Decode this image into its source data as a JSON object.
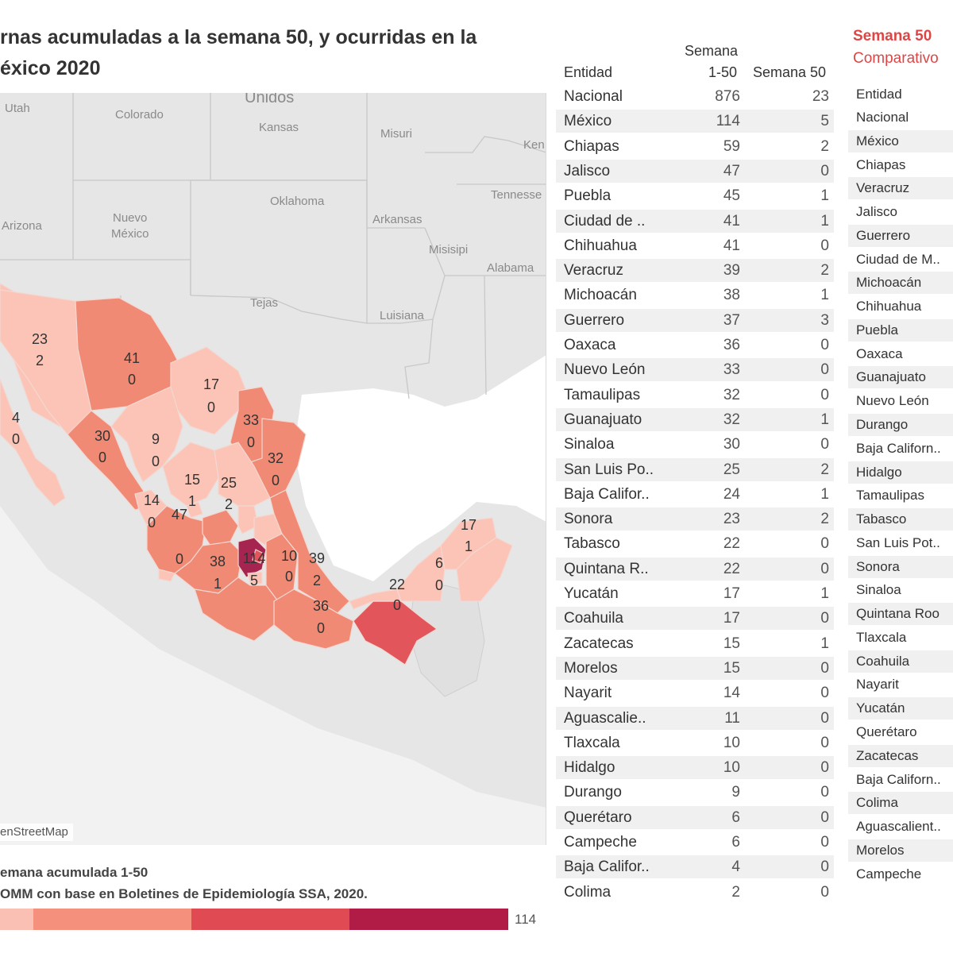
{
  "title": {
    "line1": "rnas acumuladas a la semana 50, y ocurridas en la",
    "line2": "éxico 2020"
  },
  "map": {
    "background_labels": [
      {
        "text": "Utah"
      },
      {
        "text": "Colorado"
      },
      {
        "text": "Unidos"
      },
      {
        "text": "Kansas"
      },
      {
        "text": "Misuri"
      },
      {
        "text": "Ken"
      },
      {
        "text": "Oklahoma"
      },
      {
        "text": "Tennesse"
      },
      {
        "text": "Arkansas"
      },
      {
        "text": "Arizona"
      },
      {
        "text": "Nuevo"
      },
      {
        "text": "México"
      },
      {
        "text": "Misisipi"
      },
      {
        "text": "Alabama"
      },
      {
        "text": "Tejas"
      },
      {
        "text": "Luisiana"
      }
    ],
    "credit": "enStreetMap",
    "state_values": [
      {
        "accumulated": "23",
        "week50": "2"
      },
      {
        "accumulated": "41",
        "week50": "0"
      },
      {
        "accumulated": "17",
        "week50": "0"
      },
      {
        "accumulated": "4",
        "week50": "0"
      },
      {
        "accumulated": "30",
        "week50": "0"
      },
      {
        "accumulated": "9",
        "week50": "0"
      },
      {
        "accumulated": "33",
        "week50": "0"
      },
      {
        "accumulated": "32",
        "week50": "0"
      },
      {
        "accumulated": "15",
        "week50": "1"
      },
      {
        "accumulated": "25",
        "week50": "2"
      },
      {
        "accumulated": "14",
        "week50": "0"
      },
      {
        "accumulated": "47",
        "week50": "0"
      },
      {
        "accumulated": "38",
        "week50": "1"
      },
      {
        "accumulated": "114",
        "week50": "5"
      },
      {
        "accumulated": "10",
        "week50": "0"
      },
      {
        "accumulated": "39",
        "week50": "2"
      },
      {
        "accumulated": "36",
        "week50": "0"
      },
      {
        "accumulated": "22",
        "week50": "0"
      },
      {
        "accumulated": "6",
        "week50": "0"
      },
      {
        "accumulated": "17",
        "week50": "1"
      }
    ]
  },
  "legend": {
    "line1": "emana acumulada 1-50",
    "line2": "OMM con base en Boletines de Epidemiología SSA, 2020.",
    "max_label": "114",
    "colors": [
      "#fbc0b4",
      "#f5907c",
      "#e04a52",
      "#b01c45"
    ]
  },
  "colors": {
    "accent": "#e04545",
    "scale": [
      "#fbc4b6",
      "#f6a08d",
      "#f08a74",
      "#e2555b",
      "#a52450"
    ],
    "land": "#e9e9e9",
    "water": "#ffffff"
  },
  "table1": {
    "header_entity": "Entidad",
    "header_acc_line1": "Semana",
    "header_acc_line2": "1-50",
    "header_w50": "Semana 50",
    "rows": [
      {
        "entity": "Nacional",
        "acc": "876",
        "w50": "23"
      },
      {
        "entity": "México",
        "acc": "114",
        "w50": "5"
      },
      {
        "entity": "Chiapas",
        "acc": "59",
        "w50": "2"
      },
      {
        "entity": "Jalisco",
        "acc": "47",
        "w50": "0"
      },
      {
        "entity": "Puebla",
        "acc": "45",
        "w50": "1"
      },
      {
        "entity": "Ciudad de ..",
        "acc": "41",
        "w50": "1"
      },
      {
        "entity": "Chihuahua",
        "acc": "41",
        "w50": "0"
      },
      {
        "entity": "Veracruz",
        "acc": "39",
        "w50": "2"
      },
      {
        "entity": "Michoacán",
        "acc": "38",
        "w50": "1"
      },
      {
        "entity": "Guerrero",
        "acc": "37",
        "w50": "3"
      },
      {
        "entity": "Oaxaca",
        "acc": "36",
        "w50": "0"
      },
      {
        "entity": "Nuevo León",
        "acc": "33",
        "w50": "0"
      },
      {
        "entity": "Tamaulipas",
        "acc": "32",
        "w50": "0"
      },
      {
        "entity": "Guanajuato",
        "acc": "32",
        "w50": "1"
      },
      {
        "entity": "Sinaloa",
        "acc": "30",
        "w50": "0"
      },
      {
        "entity": "San Luis Po..",
        "acc": "25",
        "w50": "2"
      },
      {
        "entity": "Baja Califor..",
        "acc": "24",
        "w50": "1"
      },
      {
        "entity": "Sonora",
        "acc": "23",
        "w50": "2"
      },
      {
        "entity": "Tabasco",
        "acc": "22",
        "w50": "0"
      },
      {
        "entity": "Quintana R..",
        "acc": "22",
        "w50": "0"
      },
      {
        "entity": "Yucatán",
        "acc": "17",
        "w50": "1"
      },
      {
        "entity": "Coahuila",
        "acc": "17",
        "w50": "0"
      },
      {
        "entity": "Zacatecas",
        "acc": "15",
        "w50": "1"
      },
      {
        "entity": "Morelos",
        "acc": "15",
        "w50": "0"
      },
      {
        "entity": "Nayarit",
        "acc": "14",
        "w50": "0"
      },
      {
        "entity": "Aguascalie..",
        "acc": "11",
        "w50": "0"
      },
      {
        "entity": "Tlaxcala",
        "acc": "10",
        "w50": "0"
      },
      {
        "entity": "Hidalgo",
        "acc": "10",
        "w50": "0"
      },
      {
        "entity": "Durango",
        "acc": "9",
        "w50": "0"
      },
      {
        "entity": "Querétaro",
        "acc": "6",
        "w50": "0"
      },
      {
        "entity": "Campeche",
        "acc": "6",
        "w50": "0"
      },
      {
        "entity": "Baja Califor..",
        "acc": "4",
        "w50": "0"
      },
      {
        "entity": "Colima",
        "acc": "2",
        "w50": "0"
      }
    ]
  },
  "table2": {
    "title1": "Semana 50",
    "title2": "Comparativo",
    "header_entity": "Entidad",
    "rows": [
      "Nacional",
      "México",
      "Chiapas",
      "Veracruz",
      "Jalisco",
      "Guerrero",
      "Ciudad de M..",
      "Michoacán",
      "Chihuahua",
      "Puebla",
      "Oaxaca",
      "Guanajuato",
      "Nuevo León",
      "Durango",
      "Baja Californ..",
      "Hidalgo",
      "Tamaulipas",
      "Tabasco",
      "San Luis Pot..",
      "Sonora",
      "Sinaloa",
      "Quintana Roo",
      "Tlaxcala",
      "Coahuila",
      "Nayarit",
      "Yucatán",
      "Querétaro",
      "Zacatecas",
      "Baja Californ..",
      "Colima",
      "Aguascalient..",
      "Morelos",
      "Campeche"
    ]
  }
}
